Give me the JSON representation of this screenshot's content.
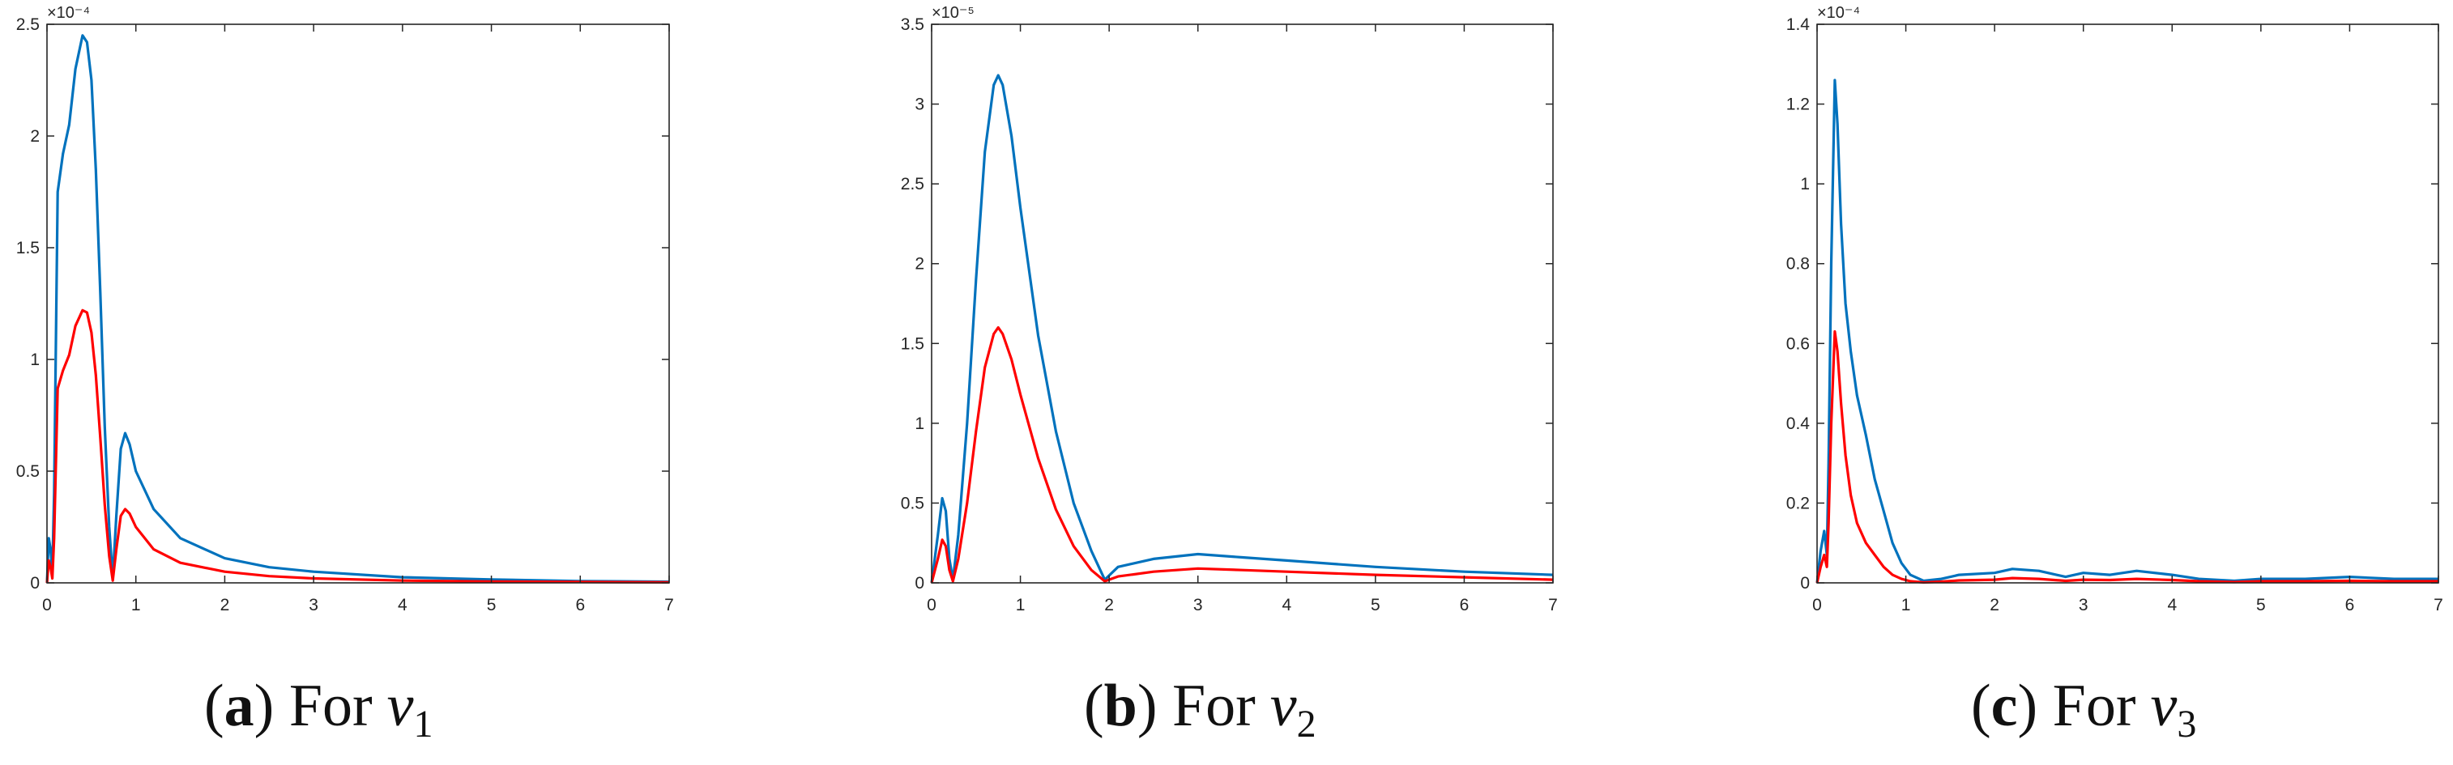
{
  "chart_data": [
    {
      "type": "line",
      "caption": {
        "open": "(",
        "letter": "a",
        "close": ")",
        "text": "For",
        "var": "v",
        "sub": "1"
      },
      "xlim": [
        0,
        7
      ],
      "ylim": [
        0,
        2.5
      ],
      "xticks": [
        "0",
        "1",
        "2",
        "3",
        "4",
        "5",
        "6",
        "7"
      ],
      "yticks": [
        "0",
        "0.5",
        "1",
        "1.5",
        "2",
        "2.5"
      ],
      "exponent": "×10⁻⁴",
      "grid": false,
      "series": [
        {
          "color": "#0072BD",
          "points": [
            [
              0,
              0
            ],
            [
              0.02,
              0.2
            ],
            [
              0.04,
              0.15
            ],
            [
              0.06,
              0.05
            ],
            [
              0.08,
              0.4
            ],
            [
              0.12,
              1.75
            ],
            [
              0.18,
              1.92
            ],
            [
              0.25,
              2.05
            ],
            [
              0.32,
              2.3
            ],
            [
              0.4,
              2.45
            ],
            [
              0.45,
              2.42
            ],
            [
              0.5,
              2.25
            ],
            [
              0.55,
              1.85
            ],
            [
              0.6,
              1.3
            ],
            [
              0.65,
              0.7
            ],
            [
              0.7,
              0.25
            ],
            [
              0.74,
              0.02
            ],
            [
              0.78,
              0.3
            ],
            [
              0.83,
              0.6
            ],
            [
              0.88,
              0.67
            ],
            [
              0.93,
              0.62
            ],
            [
              1.0,
              0.5
            ],
            [
              1.2,
              0.33
            ],
            [
              1.5,
              0.2
            ],
            [
              2.0,
              0.11
            ],
            [
              2.5,
              0.07
            ],
            [
              3.0,
              0.05
            ],
            [
              4.0,
              0.025
            ],
            [
              5.0,
              0.015
            ],
            [
              6.0,
              0.008
            ],
            [
              7.0,
              0.005
            ]
          ]
        },
        {
          "color": "#FF0000",
          "points": [
            [
              0,
              0
            ],
            [
              0.02,
              0.1
            ],
            [
              0.04,
              0.07
            ],
            [
              0.06,
              0.02
            ],
            [
              0.08,
              0.2
            ],
            [
              0.12,
              0.87
            ],
            [
              0.18,
              0.95
            ],
            [
              0.25,
              1.02
            ],
            [
              0.32,
              1.15
            ],
            [
              0.4,
              1.22
            ],
            [
              0.45,
              1.21
            ],
            [
              0.5,
              1.12
            ],
            [
              0.55,
              0.93
            ],
            [
              0.6,
              0.65
            ],
            [
              0.65,
              0.35
            ],
            [
              0.7,
              0.12
            ],
            [
              0.74,
              0.01
            ],
            [
              0.78,
              0.15
            ],
            [
              0.83,
              0.3
            ],
            [
              0.88,
              0.33
            ],
            [
              0.93,
              0.31
            ],
            [
              1.0,
              0.25
            ],
            [
              1.2,
              0.15
            ],
            [
              1.5,
              0.09
            ],
            [
              2.0,
              0.05
            ],
            [
              2.5,
              0.03
            ],
            [
              3.0,
              0.02
            ],
            [
              4.0,
              0.01
            ],
            [
              5.0,
              0.006
            ],
            [
              6.0,
              0.004
            ],
            [
              7.0,
              0.002
            ]
          ]
        }
      ]
    },
    {
      "type": "line",
      "caption": {
        "open": "(",
        "letter": "b",
        "close": ")",
        "text": "For",
        "var": "v",
        "sub": "2"
      },
      "xlim": [
        0,
        7
      ],
      "ylim": [
        0,
        3.5
      ],
      "xticks": [
        "0",
        "1",
        "2",
        "3",
        "4",
        "5",
        "6",
        "7"
      ],
      "yticks": [
        "0",
        "0.5",
        "1",
        "1.5",
        "2",
        "2.5",
        "3",
        "3.5"
      ],
      "exponent": "×10⁻⁵",
      "grid": false,
      "series": [
        {
          "color": "#0072BD",
          "points": [
            [
              0,
              0
            ],
            [
              0.07,
              0.3
            ],
            [
              0.12,
              0.53
            ],
            [
              0.16,
              0.45
            ],
            [
              0.2,
              0.15
            ],
            [
              0.24,
              0.02
            ],
            [
              0.3,
              0.3
            ],
            [
              0.4,
              1.0
            ],
            [
              0.5,
              1.9
            ],
            [
              0.6,
              2.7
            ],
            [
              0.7,
              3.12
            ],
            [
              0.75,
              3.18
            ],
            [
              0.8,
              3.12
            ],
            [
              0.9,
              2.8
            ],
            [
              1.0,
              2.35
            ],
            [
              1.2,
              1.55
            ],
            [
              1.4,
              0.95
            ],
            [
              1.6,
              0.5
            ],
            [
              1.8,
              0.2
            ],
            [
              1.95,
              0.02
            ],
            [
              2.1,
              0.1
            ],
            [
              2.5,
              0.15
            ],
            [
              3.0,
              0.18
            ],
            [
              3.5,
              0.16
            ],
            [
              4.0,
              0.14
            ],
            [
              5.0,
              0.1
            ],
            [
              6.0,
              0.07
            ],
            [
              7.0,
              0.05
            ]
          ]
        },
        {
          "color": "#FF0000",
          "points": [
            [
              0,
              0
            ],
            [
              0.07,
              0.15
            ],
            [
              0.12,
              0.27
            ],
            [
              0.16,
              0.23
            ],
            [
              0.2,
              0.08
            ],
            [
              0.24,
              0.01
            ],
            [
              0.3,
              0.15
            ],
            [
              0.4,
              0.5
            ],
            [
              0.5,
              0.95
            ],
            [
              0.6,
              1.35
            ],
            [
              0.7,
              1.56
            ],
            [
              0.75,
              1.6
            ],
            [
              0.8,
              1.56
            ],
            [
              0.9,
              1.4
            ],
            [
              1.0,
              1.18
            ],
            [
              1.2,
              0.78
            ],
            [
              1.4,
              0.46
            ],
            [
              1.6,
              0.23
            ],
            [
              1.8,
              0.08
            ],
            [
              1.95,
              0.01
            ],
            [
              2.1,
              0.04
            ],
            [
              2.5,
              0.07
            ],
            [
              3.0,
              0.09
            ],
            [
              3.5,
              0.08
            ],
            [
              4.0,
              0.07
            ],
            [
              5.0,
              0.05
            ],
            [
              6.0,
              0.035
            ],
            [
              7.0,
              0.02
            ]
          ]
        }
      ]
    },
    {
      "type": "line",
      "caption": {
        "open": "(",
        "letter": "c",
        "close": ")",
        "text": "For",
        "var": "v",
        "sub": "3"
      },
      "xlim": [
        0,
        7
      ],
      "ylim": [
        0,
        1.4
      ],
      "xticks": [
        "0",
        "1",
        "2",
        "3",
        "4",
        "5",
        "6",
        "7"
      ],
      "yticks": [
        "0",
        "0.2",
        "0.4",
        "0.6",
        "0.8",
        "1",
        "1.2",
        "1.4"
      ],
      "exponent": "×10⁻⁴",
      "grid": false,
      "series": [
        {
          "color": "#0072BD",
          "points": [
            [
              0,
              0
            ],
            [
              0.04,
              0.08
            ],
            [
              0.08,
              0.13
            ],
            [
              0.11,
              0.07
            ],
            [
              0.13,
              0.3
            ],
            [
              0.16,
              0.8
            ],
            [
              0.2,
              1.26
            ],
            [
              0.23,
              1.15
            ],
            [
              0.27,
              0.9
            ],
            [
              0.32,
              0.7
            ],
            [
              0.38,
              0.58
            ],
            [
              0.45,
              0.47
            ],
            [
              0.55,
              0.37
            ],
            [
              0.65,
              0.26
            ],
            [
              0.75,
              0.18
            ],
            [
              0.85,
              0.1
            ],
            [
              0.95,
              0.05
            ],
            [
              1.05,
              0.02
            ],
            [
              1.2,
              0.005
            ],
            [
              1.4,
              0.01
            ],
            [
              1.6,
              0.02
            ],
            [
              2.0,
              0.025
            ],
            [
              2.2,
              0.035
            ],
            [
              2.5,
              0.03
            ],
            [
              2.8,
              0.015
            ],
            [
              3.0,
              0.025
            ],
            [
              3.3,
              0.02
            ],
            [
              3.6,
              0.03
            ],
            [
              4.0,
              0.02
            ],
            [
              4.3,
              0.01
            ],
            [
              4.7,
              0.005
            ],
            [
              5.0,
              0.01
            ],
            [
              5.5,
              0.01
            ],
            [
              6.0,
              0.015
            ],
            [
              6.5,
              0.01
            ],
            [
              7.0,
              0.01
            ]
          ]
        },
        {
          "color": "#FF0000",
          "points": [
            [
              0,
              0
            ],
            [
              0.04,
              0.04
            ],
            [
              0.08,
              0.07
            ],
            [
              0.11,
              0.04
            ],
            [
              0.13,
              0.15
            ],
            [
              0.16,
              0.4
            ],
            [
              0.2,
              0.63
            ],
            [
              0.23,
              0.58
            ],
            [
              0.27,
              0.45
            ],
            [
              0.32,
              0.32
            ],
            [
              0.38,
              0.22
            ],
            [
              0.45,
              0.15
            ],
            [
              0.55,
              0.1
            ],
            [
              0.65,
              0.07
            ],
            [
              0.75,
              0.04
            ],
            [
              0.85,
              0.02
            ],
            [
              0.95,
              0.01
            ],
            [
              1.05,
              0.004
            ],
            [
              1.2,
              0.001
            ],
            [
              1.4,
              0.003
            ],
            [
              1.6,
              0.006
            ],
            [
              2.0,
              0.008
            ],
            [
              2.2,
              0.012
            ],
            [
              2.5,
              0.01
            ],
            [
              2.8,
              0.005
            ],
            [
              3.0,
              0.008
            ],
            [
              3.3,
              0.007
            ],
            [
              3.6,
              0.01
            ],
            [
              4.0,
              0.007
            ],
            [
              4.3,
              0.004
            ],
            [
              4.7,
              0.002
            ],
            [
              5.0,
              0.004
            ],
            [
              5.5,
              0.004
            ],
            [
              6.0,
              0.005
            ],
            [
              6.5,
              0.004
            ],
            [
              7.0,
              0.004
            ]
          ]
        }
      ]
    }
  ]
}
